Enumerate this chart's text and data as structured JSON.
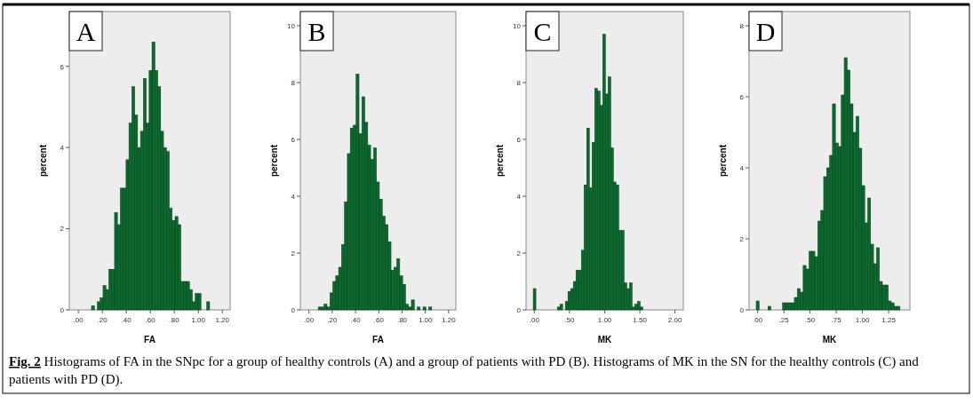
{
  "chart_data": [
    {
      "type": "histogram",
      "title": "A",
      "xlabel": "FA",
      "ylabel": "percent",
      "color": "#0b6b2e",
      "bins": [
        0.11,
        0.134,
        0.158,
        0.182,
        0.206,
        0.23,
        0.254,
        0.278,
        0.302,
        0.326,
        0.35,
        0.374,
        0.398,
        0.422,
        0.446,
        0.47,
        0.494,
        0.518,
        0.542,
        0.566,
        0.59,
        0.614,
        0.638,
        0.662,
        0.686,
        0.71,
        0.734,
        0.758,
        0.782,
        0.806,
        0.83,
        0.854,
        0.878,
        0.902,
        0.926,
        0.95,
        0.974,
        0.998,
        1.022,
        1.046,
        1.07,
        1.094
      ],
      "values": [
        0.1,
        0,
        0.2,
        0.3,
        0.6,
        0.5,
        1.0,
        1.0,
        2.4,
        2.1,
        3.0,
        3.0,
        3.7,
        4.6,
        5.5,
        4.8,
        4.0,
        4.4,
        5.7,
        4.6,
        5.9,
        6.6,
        5.9,
        5.5,
        4.4,
        4.0,
        3.9,
        2.5,
        2.2,
        2.3,
        2.1,
        0.7,
        0.7,
        0.7,
        0.5,
        0.2,
        0.4,
        0.4,
        0,
        0,
        0.2
      ],
      "xlim": [
        -0.075,
        1.265
      ],
      "ylim": [
        0,
        7.35
      ],
      "xticks": [
        {
          "value": 0,
          "label": ".00"
        },
        {
          "value": 0.2,
          "label": ".20"
        },
        {
          "value": 0.4,
          "label": ".40"
        },
        {
          "value": 0.6,
          "label": ".60"
        },
        {
          "value": 0.8,
          "label": ".80"
        },
        {
          "value": 1,
          "label": "1.00"
        },
        {
          "value": 1.2,
          "label": "1.20"
        }
      ],
      "yticks": [
        0,
        2,
        4,
        6
      ],
      "annotations": [
        "Fig. 2",
        "Histograms of FA in the SNpc for a group of healthy controls (A) and a group of patients with PD (B). Histograms of MK in the SN for the healthy controls (C) and patients with PD (D)."
      ]
    },
    {
      "type": "histogram",
      "title": "B",
      "xlabel": "FA",
      "ylabel": "percent",
      "color": "#0b6b2e",
      "bins": [
        0.08,
        0.105,
        0.13,
        0.155,
        0.18,
        0.205,
        0.23,
        0.255,
        0.28,
        0.305,
        0.33,
        0.355,
        0.38,
        0.405,
        0.43,
        0.455,
        0.48,
        0.505,
        0.53,
        0.555,
        0.58,
        0.605,
        0.63,
        0.655,
        0.68,
        0.705,
        0.73,
        0.755,
        0.78,
        0.805,
        0.83,
        0.855,
        0.88,
        0.905,
        0.93,
        0.955,
        0.98,
        1.005,
        1.03,
        1.055
      ],
      "values": [
        0.1,
        0.1,
        0.2,
        0.1,
        0.6,
        1.0,
        1.2,
        1.5,
        2.3,
        3.8,
        5.5,
        6.4,
        6.5,
        8.3,
        6.2,
        7.5,
        6.6,
        5.8,
        5.3,
        5.7,
        4.5,
        3.9,
        3.3,
        3.0,
        2.4,
        1.4,
        1.5,
        1.8,
        1.2,
        0.9,
        0.2,
        0.1,
        0.35,
        0,
        0.1,
        0,
        0.1,
        0,
        0.1
      ],
      "xlim": [
        -0.074,
        1.262
      ],
      "ylim": [
        0,
        10.5
      ],
      "xticks": [
        {
          "value": 0,
          "label": ".00"
        },
        {
          "value": 0.2,
          "label": ".20"
        },
        {
          "value": 0.4,
          "label": ".40"
        },
        {
          "value": 0.6,
          "label": ".60"
        },
        {
          "value": 0.8,
          "label": ".80"
        },
        {
          "value": 1,
          "label": "1.00"
        },
        {
          "value": 1.2,
          "label": "1.20"
        }
      ],
      "yticks": [
        0,
        2,
        4,
        6,
        8,
        10
      ]
    },
    {
      "type": "histogram",
      "title": "C",
      "xlabel": "MK",
      "ylabel": "percent",
      "color": "#0b6b2e",
      "bins": [
        -0.016,
        0.022,
        0.06,
        0.098,
        0.136,
        0.174,
        0.212,
        0.25,
        0.288,
        0.326,
        0.364,
        0.402,
        0.44,
        0.478,
        0.516,
        0.554,
        0.592,
        0.63,
        0.668,
        0.706,
        0.744,
        0.782,
        0.82,
        0.858,
        0.896,
        0.934,
        0.972,
        1.01,
        1.048,
        1.086,
        1.124,
        1.162,
        1.2,
        1.238,
        1.276,
        1.314,
        1.352,
        1.39,
        1.428,
        1.466,
        1.504,
        1.542
      ],
      "values": [
        0.75,
        0,
        0,
        0,
        0,
        0,
        0,
        0,
        0,
        0.1,
        0.2,
        0,
        0.3,
        0.65,
        0.75,
        1.0,
        1.4,
        1.4,
        2.1,
        4.4,
        6.4,
        4.3,
        5.9,
        7.8,
        7.7,
        7.2,
        9.7,
        7.6,
        8.2,
        5.7,
        4.5,
        4.4,
        2.8,
        2.8,
        0.95,
        0.75,
        0.95,
        0.1,
        0.2,
        0.3,
        0.1
      ],
      "xlim": [
        -0.118,
        2.118
      ],
      "ylim": [
        0,
        10.5
      ],
      "xticks": [
        {
          "value": 0,
          "label": ".00"
        },
        {
          "value": 0.5,
          "label": ".50"
        },
        {
          "value": 1,
          "label": "1.00"
        },
        {
          "value": 1.5,
          "label": "1.50"
        },
        {
          "value": 2,
          "label": "2.00"
        }
      ],
      "yticks": [
        0,
        2,
        4,
        6,
        8,
        10
      ]
    },
    {
      "type": "histogram",
      "title": "D",
      "xlabel": "MK",
      "ylabel": "percent",
      "color": "#0b6b2e",
      "bins": [
        -0.014,
        0.014,
        0.042,
        0.07,
        0.098,
        0.126,
        0.154,
        0.182,
        0.21,
        0.238,
        0.266,
        0.294,
        0.322,
        0.35,
        0.378,
        0.406,
        0.434,
        0.462,
        0.49,
        0.518,
        0.546,
        0.574,
        0.602,
        0.63,
        0.658,
        0.686,
        0.714,
        0.742,
        0.77,
        0.798,
        0.826,
        0.854,
        0.882,
        0.91,
        0.938,
        0.966,
        0.994,
        1.022,
        1.05,
        1.078,
        1.106,
        1.134,
        1.162,
        1.19,
        1.218,
        1.246,
        1.274,
        1.302,
        1.33,
        1.358
      ],
      "values": [
        0.25,
        0,
        0,
        0,
        0.1,
        0,
        0,
        0,
        0,
        0.2,
        0.2,
        0.2,
        0.2,
        0.35,
        0.6,
        0.5,
        1.25,
        1.15,
        1.65,
        1.65,
        1.5,
        2.5,
        2.8,
        3.75,
        4.0,
        4.35,
        5.8,
        4.7,
        4.6,
        6.05,
        7.1,
        6.75,
        5.8,
        5.0,
        5.45,
        4.55,
        3.5,
        2.45,
        3.15,
        1.85,
        1.3,
        1.75,
        0.8,
        0.7,
        0.7,
        0.25,
        0.2,
        0.1,
        0.1
      ],
      "xlim": [
        -0.082,
        1.453
      ],
      "ylim": [
        0,
        8.4
      ],
      "xticks": [
        {
          "value": 0,
          "label": ".00"
        },
        {
          "value": 0.25,
          "label": ".25"
        },
        {
          "value": 0.5,
          "label": ".50"
        },
        {
          "value": 0.75,
          "label": ".75"
        },
        {
          "value": 1,
          "label": "1.00"
        },
        {
          "value": 1.25,
          "label": "1.25"
        }
      ],
      "yticks": [
        0,
        2,
        4,
        6,
        8
      ]
    }
  ]
}
